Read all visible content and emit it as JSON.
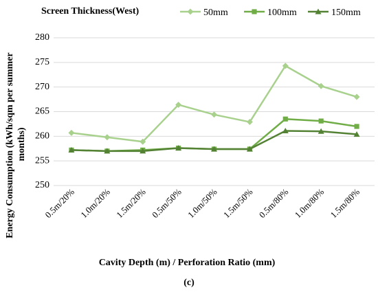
{
  "chart_data": {
    "type": "line",
    "title": "Screen Thickness(West)",
    "xlabel": "Cavity Depth (m) / Perforation Ratio (mm)",
    "ylabel": "Energy Consumption (kWh/sqm per summer months)",
    "ylim": [
      250,
      280
    ],
    "yticks": [
      250,
      255,
      260,
      265,
      270,
      275,
      280
    ],
    "grid": true,
    "legend_position": "top-right",
    "caption": "(c)",
    "categories": [
      "0.5m/20%",
      "1.0m/20%",
      "1.5m/20%",
      "0.5m/50%",
      "1.0m/50%",
      "1.5m/50%",
      "0.5m/80%",
      "1.0m/80%",
      "1.5m/80%"
    ],
    "series": [
      {
        "name": "50mm",
        "color": "#a9d18e",
        "marker": "diamond",
        "values": [
          260.7,
          259.8,
          258.9,
          266.4,
          264.4,
          262.9,
          274.3,
          270.2,
          268.0
        ]
      },
      {
        "name": "100mm",
        "color": "#70ad47",
        "marker": "square",
        "values": [
          257.2,
          257.0,
          257.2,
          257.6,
          257.4,
          257.4,
          263.5,
          263.1,
          262.0
        ]
      },
      {
        "name": "150mm",
        "color": "#548235",
        "marker": "triangle",
        "values": [
          257.2,
          257.0,
          257.0,
          257.6,
          257.4,
          257.4,
          261.1,
          261.0,
          260.4
        ]
      }
    ]
  }
}
